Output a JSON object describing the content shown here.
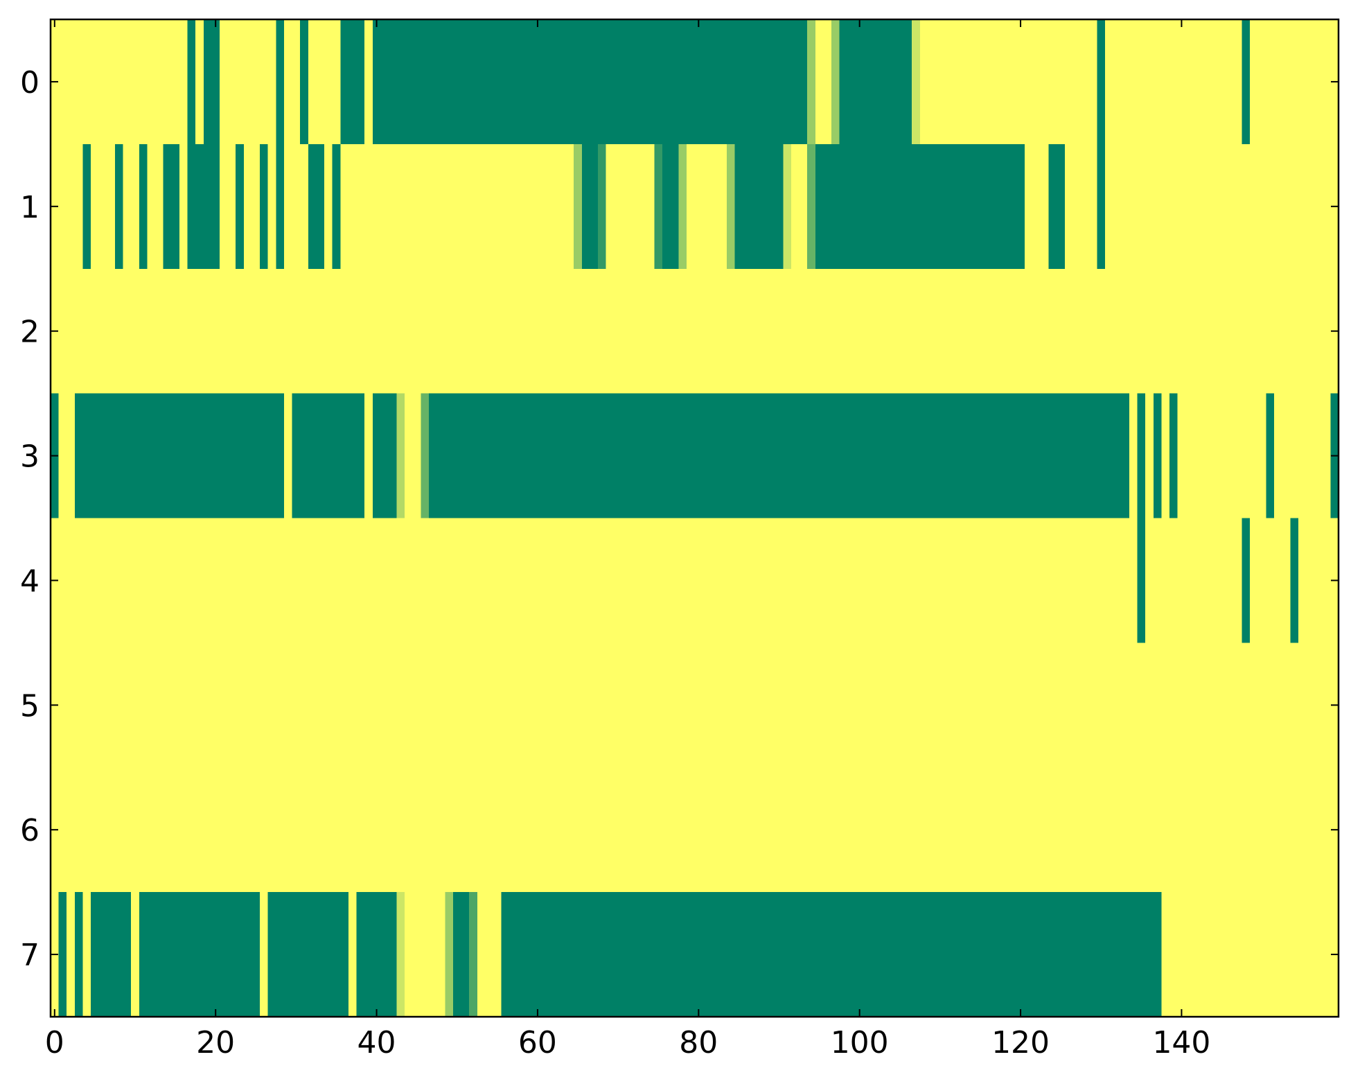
{
  "chart_data": {
    "type": "heatmap",
    "colormap": "summer",
    "values": [
      [
        1,
        1,
        1,
        1,
        1,
        1,
        1,
        1,
        1,
        1,
        1,
        1,
        1,
        1,
        1,
        1,
        1,
        0,
        1,
        0,
        0,
        1,
        1,
        1,
        1,
        1,
        1,
        1,
        0,
        1,
        1,
        0,
        1,
        1,
        1,
        1,
        0,
        0,
        0,
        1,
        0,
        0,
        0,
        0,
        0,
        0,
        0,
        0,
        0,
        0,
        0,
        0,
        0,
        0,
        0,
        0,
        0,
        0,
        0,
        0,
        0,
        0,
        0,
        0,
        0,
        0,
        0,
        0,
        0,
        0,
        0,
        0,
        0,
        0,
        0,
        0,
        0,
        0,
        0,
        0,
        0,
        0,
        0,
        0,
        0,
        0,
        0,
        0,
        0,
        0,
        0,
        0,
        0,
        0,
        0.6,
        1,
        1,
        0.6,
        0,
        0,
        0,
        0,
        0,
        0,
        0,
        0,
        0,
        0.8,
        1,
        1,
        1,
        1,
        1,
        1,
        1,
        1,
        1,
        1,
        1,
        1,
        1,
        1,
        1,
        1,
        1,
        1,
        1,
        1,
        1,
        1,
        0,
        1,
        1,
        1,
        1,
        1,
        1,
        1,
        1,
        1,
        1,
        1,
        1,
        1,
        1,
        1,
        1,
        1,
        0,
        1,
        1,
        1,
        1,
        1,
        1,
        1,
        1,
        1,
        1,
        1
      ],
      [
        1,
        1,
        1,
        1,
        0,
        1,
        1,
        1,
        0,
        1,
        1,
        0,
        1,
        1,
        0,
        0,
        1,
        0,
        0,
        0,
        0,
        1,
        1,
        0,
        1,
        1,
        0,
        1,
        0,
        1,
        1,
        1,
        0,
        0,
        1,
        0,
        1,
        1,
        1,
        1,
        1,
        1,
        1,
        1,
        1,
        1,
        1,
        1,
        1,
        1,
        1,
        1,
        1,
        1,
        1,
        1,
        1,
        1,
        1,
        1,
        1,
        1,
        1,
        1,
        1,
        0.6,
        0,
        0,
        0.2,
        1,
        1,
        1,
        1,
        1,
        1,
        0.2,
        0,
        0,
        0.6,
        1,
        1,
        1,
        1,
        1,
        0.6,
        0,
        0,
        0,
        0,
        0,
        0,
        0.8,
        1,
        1,
        0.4,
        0,
        0,
        0,
        0,
        0,
        0,
        0,
        0,
        0,
        0,
        0,
        0,
        0,
        0,
        0,
        0,
        0,
        0,
        0,
        0,
        0,
        0,
        0,
        0,
        0,
        0,
        1,
        1,
        1,
        0,
        0,
        1,
        1,
        1,
        1,
        0,
        1,
        1,
        1,
        1,
        1,
        1,
        1,
        1,
        1,
        1,
        1,
        1,
        1,
        1,
        1,
        1,
        1,
        1,
        1,
        1,
        1,
        1,
        1,
        1,
        1,
        1,
        1,
        1,
        1
      ],
      [
        1,
        1,
        1,
        1,
        1,
        1,
        1,
        1,
        1,
        1,
        1,
        1,
        1,
        1,
        1,
        1,
        1,
        1,
        1,
        1,
        1,
        1,
        1,
        1,
        1,
        1,
        1,
        1,
        1,
        1,
        1,
        1,
        1,
        1,
        1,
        1,
        1,
        1,
        1,
        1,
        1,
        1,
        1,
        1,
        1,
        1,
        1,
        1,
        1,
        1,
        1,
        1,
        1,
        1,
        1,
        1,
        1,
        1,
        1,
        1,
        1,
        1,
        1,
        1,
        1,
        1,
        1,
        1,
        1,
        1,
        1,
        1,
        1,
        1,
        1,
        1,
        1,
        1,
        1,
        1,
        1,
        1,
        1,
        1,
        1,
        1,
        1,
        1,
        1,
        1,
        1,
        1,
        1,
        1,
        1,
        1,
        1,
        1,
        1,
        1,
        1,
        1,
        1,
        1,
        1,
        1,
        1,
        1,
        1,
        1,
        1,
        1,
        1,
        1,
        1,
        1,
        1,
        1,
        1,
        1,
        1,
        1,
        1,
        1,
        1,
        1,
        1,
        1,
        1,
        1,
        1,
        1,
        1,
        1,
        1,
        1,
        1,
        1,
        1,
        1,
        1,
        1,
        1,
        1,
        1,
        1,
        1,
        1,
        1,
        1,
        1,
        1,
        1,
        1,
        1,
        1,
        1,
        1,
        1,
        1
      ],
      [
        0,
        1,
        1,
        0,
        0,
        0,
        0,
        0,
        0,
        0,
        0,
        0,
        0,
        0,
        0,
        0,
        0,
        0,
        0,
        0,
        0,
        0,
        0,
        0,
        0,
        0,
        0,
        0,
        0,
        1,
        0,
        0,
        0,
        0,
        0,
        0,
        0,
        0,
        0,
        1,
        0,
        0,
        0,
        0.7,
        1,
        1,
        0.4,
        0,
        0,
        0,
        0,
        0,
        0,
        0,
        0,
        0,
        0,
        0,
        0,
        0,
        0,
        0,
        0,
        0,
        0,
        0,
        0,
        0,
        0,
        0,
        0,
        0,
        0,
        0,
        0,
        0,
        0,
        0,
        0,
        0,
        0,
        0,
        0,
        0,
        0,
        0,
        0,
        0,
        0,
        0,
        0,
        0,
        0,
        0,
        0,
        0,
        0,
        0,
        0,
        0,
        0,
        0,
        0,
        0,
        0,
        0,
        0,
        0,
        0,
        0,
        0,
        0,
        0,
        0,
        0,
        0,
        0,
        0,
        0,
        0,
        0,
        0,
        0,
        0,
        0,
        0,
        0,
        0,
        0,
        0,
        0,
        0,
        0,
        0,
        1,
        0,
        1,
        0,
        1,
        0,
        1,
        1,
        1,
        1,
        1,
        1,
        1,
        1,
        1,
        1,
        1,
        0,
        1,
        1,
        1,
        1,
        1,
        1,
        1,
        0
      ],
      [
        1,
        1,
        1,
        1,
        1,
        1,
        1,
        1,
        1,
        1,
        1,
        1,
        1,
        1,
        1,
        1,
        1,
        1,
        1,
        1,
        1,
        1,
        1,
        1,
        1,
        1,
        1,
        1,
        1,
        1,
        1,
        1,
        1,
        1,
        1,
        1,
        1,
        1,
        1,
        1,
        1,
        1,
        1,
        1,
        1,
        1,
        1,
        1,
        1,
        1,
        1,
        1,
        1,
        1,
        1,
        1,
        1,
        1,
        1,
        1,
        1,
        1,
        1,
        1,
        1,
        1,
        1,
        1,
        1,
        1,
        1,
        1,
        1,
        1,
        1,
        1,
        1,
        1,
        1,
        1,
        1,
        1,
        1,
        1,
        1,
        1,
        1,
        1,
        1,
        1,
        1,
        1,
        1,
        1,
        1,
        1,
        1,
        1,
        1,
        1,
        1,
        1,
        1,
        1,
        1,
        1,
        1,
        1,
        1,
        1,
        1,
        1,
        1,
        1,
        1,
        1,
        1,
        1,
        1,
        1,
        1,
        1,
        1,
        1,
        1,
        1,
        1,
        1,
        1,
        1,
        1,
        1,
        1,
        1,
        1,
        0,
        1,
        1,
        1,
        1,
        1,
        1,
        1,
        1,
        1,
        1,
        1,
        1,
        0,
        1,
        1,
        1,
        1,
        1,
        0,
        1,
        1,
        1,
        1,
        1
      ],
      [
        1,
        1,
        1,
        1,
        1,
        1,
        1,
        1,
        1,
        1,
        1,
        1,
        1,
        1,
        1,
        1,
        1,
        1,
        1,
        1,
        1,
        1,
        1,
        1,
        1,
        1,
        1,
        1,
        1,
        1,
        1,
        1,
        1,
        1,
        1,
        1,
        1,
        1,
        1,
        1,
        1,
        1,
        1,
        1,
        1,
        1,
        1,
        1,
        1,
        1,
        1,
        1,
        1,
        1,
        1,
        1,
        1,
        1,
        1,
        1,
        1,
        1,
        1,
        1,
        1,
        1,
        1,
        1,
        1,
        1,
        1,
        1,
        1,
        1,
        1,
        1,
        1,
        1,
        1,
        1,
        1,
        1,
        1,
        1,
        1,
        1,
        1,
        1,
        1,
        1,
        1,
        1,
        1,
        1,
        1,
        1,
        1,
        1,
        1,
        1,
        1,
        1,
        1,
        1,
        1,
        1,
        1,
        1,
        1,
        1,
        1,
        1,
        1,
        1,
        1,
        1,
        1,
        1,
        1,
        1,
        1,
        1,
        1,
        1,
        1,
        1,
        1,
        1,
        1,
        1,
        1,
        1,
        1,
        1,
        1,
        1,
        1,
        1,
        1,
        1,
        1,
        1,
        1,
        1,
        1,
        1,
        1,
        1,
        1,
        1,
        1,
        1,
        1,
        1,
        1,
        1,
        1,
        1,
        1,
        1
      ],
      [
        1,
        1,
        1,
        1,
        1,
        1,
        1,
        1,
        1,
        1,
        1,
        1,
        1,
        1,
        1,
        1,
        1,
        1,
        1,
        1,
        1,
        1,
        1,
        1,
        1,
        1,
        1,
        1,
        1,
        1,
        1,
        1,
        1,
        1,
        1,
        1,
        1,
        1,
        1,
        1,
        1,
        1,
        1,
        1,
        1,
        1,
        1,
        1,
        1,
        1,
        1,
        1,
        1,
        1,
        1,
        1,
        1,
        1,
        1,
        1,
        1,
        1,
        1,
        1,
        1,
        1,
        1,
        1,
        1,
        1,
        1,
        1,
        1,
        1,
        1,
        1,
        1,
        1,
        1,
        1,
        1,
        1,
        1,
        1,
        1,
        1,
        1,
        1,
        1,
        1,
        1,
        1,
        1,
        1,
        1,
        1,
        1,
        1,
        1,
        1,
        1,
        1,
        1,
        1,
        1,
        1,
        1,
        1,
        1,
        1,
        1,
        1,
        1,
        1,
        1,
        1,
        1,
        1,
        1,
        1,
        1,
        1,
        1,
        1,
        1,
        1,
        1,
        1,
        1,
        1,
        1,
        1,
        1,
        1,
        1,
        1,
        1,
        1,
        1,
        1,
        1,
        1,
        1,
        1,
        1,
        1,
        1,
        1,
        1,
        1,
        1,
        1,
        1,
        1,
        1,
        1,
        1,
        1,
        1,
        1
      ],
      [
        1,
        0,
        1,
        0,
        1,
        0,
        0,
        0,
        0,
        0,
        1,
        0,
        0,
        0,
        0,
        0,
        0,
        0,
        0,
        0,
        0,
        0,
        0,
        0,
        0,
        0,
        1,
        0,
        0,
        0,
        0,
        0,
        0,
        0,
        0,
        0,
        0,
        1,
        0,
        0,
        0,
        0,
        0,
        0.8,
        1,
        1,
        1,
        1,
        1,
        0.6,
        0,
        0,
        0.3,
        1,
        1,
        1,
        0,
        0,
        0,
        0,
        0,
        0,
        0,
        0,
        0,
        0,
        0,
        0,
        0,
        0,
        0,
        0,
        0,
        0,
        0,
        0,
        0,
        0,
        0,
        0,
        0,
        0,
        0,
        0,
        0,
        0,
        0,
        0,
        0,
        0,
        0,
        0,
        0,
        0,
        0,
        0,
        0,
        0,
        0,
        0,
        0,
        0,
        0,
        0,
        0,
        0,
        0,
        0,
        0,
        0,
        0,
        0,
        0,
        0,
        0,
        0,
        0,
        0,
        0,
        0,
        0,
        0,
        0,
        0,
        0,
        0,
        0,
        0,
        0,
        0,
        0,
        0,
        0,
        0,
        0,
        0,
        0,
        0,
        1,
        1,
        1,
        1,
        1,
        1,
        1,
        1,
        1,
        1,
        1,
        1,
        1,
        1,
        1,
        1,
        1,
        1,
        1,
        1,
        1,
        1
      ]
    ],
    "xlim": [
      -0.5,
      159.5
    ],
    "ylim": [
      7.5,
      -0.5
    ],
    "xticks": [
      0,
      20,
      40,
      60,
      80,
      100,
      120,
      140
    ],
    "yticks": [
      0,
      1,
      2,
      3,
      4,
      5,
      6,
      7
    ]
  }
}
